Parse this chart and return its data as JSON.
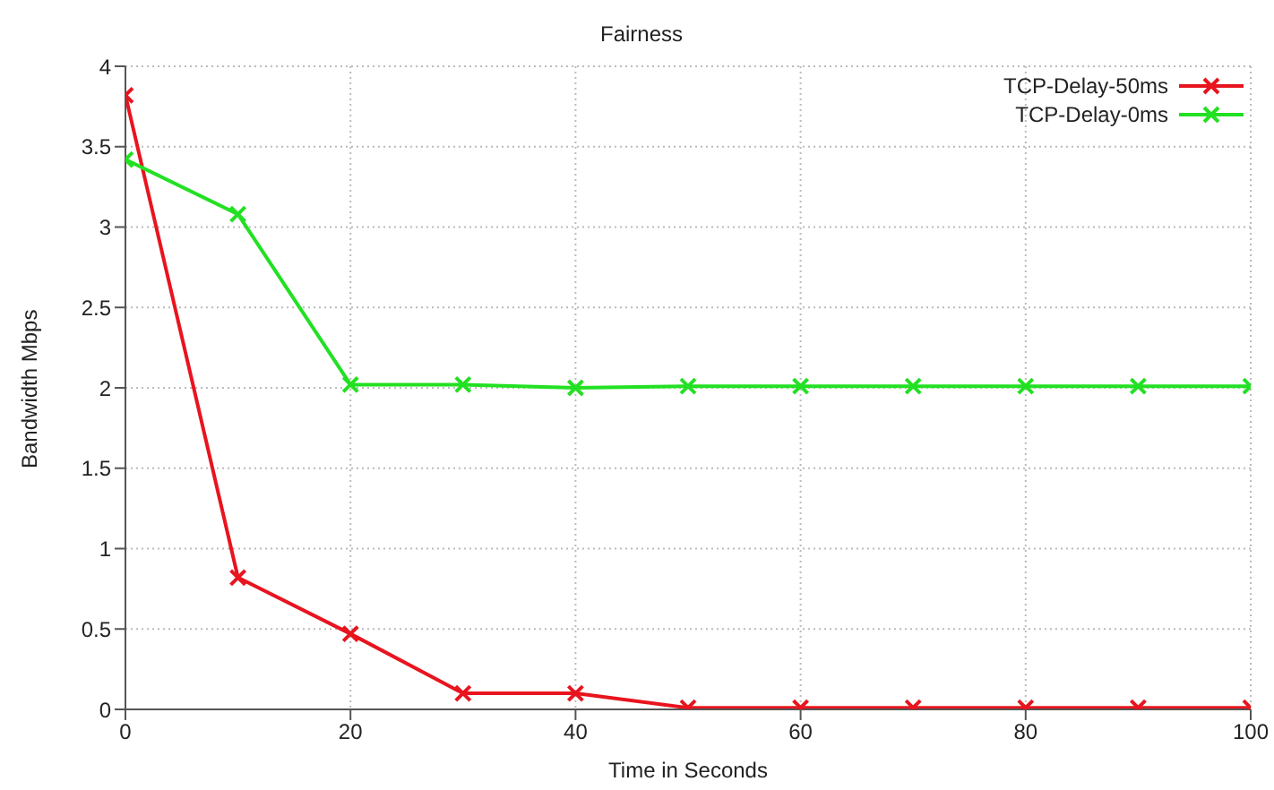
{
  "chart_data": {
    "type": "line",
    "title": "Fairness",
    "xlabel": "Time in Seconds",
    "ylabel": "Bandwidth Mbps",
    "x": [
      0,
      10,
      20,
      30,
      40,
      50,
      60,
      70,
      80,
      90,
      100
    ],
    "series": [
      {
        "name": "TCP-Delay-50ms",
        "color": "#e8141e",
        "marker": "cross",
        "values": [
          3.82,
          0.82,
          0.47,
          0.1,
          0.1,
          0.01,
          0.01,
          0.01,
          0.01,
          0.01,
          0.01
        ]
      },
      {
        "name": "TCP-Delay-0ms",
        "color": "#22e022",
        "marker": "cross",
        "values": [
          3.42,
          3.08,
          2.02,
          2.02,
          2.0,
          2.01,
          2.01,
          2.01,
          2.01,
          2.01,
          2.01
        ]
      }
    ],
    "xlim": [
      0,
      100
    ],
    "xticks": [
      0,
      20,
      40,
      60,
      80,
      100
    ],
    "ylim": [
      0,
      4
    ],
    "yticks": [
      0,
      0.5,
      1,
      1.5,
      2,
      2.5,
      3,
      3.5,
      4
    ],
    "grid": true,
    "legend": "top right",
    "line_style": "solid"
  }
}
